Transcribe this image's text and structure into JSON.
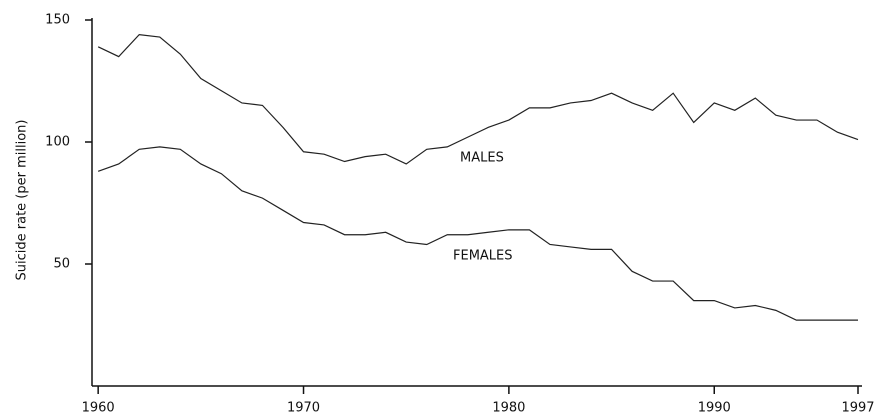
{
  "chart_data": {
    "type": "line",
    "y_label": "Suicide rate (per million)",
    "x": [
      1960,
      1961,
      1962,
      1963,
      1964,
      1965,
      1966,
      1967,
      1968,
      1969,
      1970,
      1971,
      1972,
      1973,
      1974,
      1975,
      1976,
      1977,
      1978,
      1979,
      1980,
      1981,
      1982,
      1983,
      1984,
      1985,
      1986,
      1987,
      1988,
      1989,
      1990,
      1991,
      1992,
      1993,
      1994,
      1995,
      1996,
      1997
    ],
    "series": [
      {
        "name": "MALES",
        "color": "#222222",
        "values": [
          139,
          135,
          144,
          143,
          136,
          126,
          121,
          116,
          115,
          106,
          96,
          95,
          92,
          94,
          95,
          91,
          97,
          98,
          102,
          106,
          109,
          114,
          114,
          116,
          117,
          120,
          116,
          113,
          120,
          108,
          116,
          113,
          118,
          111,
          109,
          109,
          104,
          101
        ]
      },
      {
        "name": "FEMALES",
        "color": "#222222",
        "values": [
          88,
          91,
          97,
          98,
          97,
          91,
          87,
          80,
          77,
          72,
          67,
          66,
          62,
          62,
          63,
          59,
          58,
          62,
          62,
          63,
          64,
          64,
          58,
          57,
          56,
          56,
          47,
          43,
          43,
          35,
          35,
          32,
          33,
          31,
          27,
          27,
          27,
          27
        ]
      }
    ],
    "xlim": [
      1959.7,
      1997
    ],
    "xticks": [
      1960,
      1970,
      1980,
      1990,
      1997
    ],
    "ylim": [
      0,
      150
    ],
    "yticks": [
      50,
      100,
      150
    ],
    "grid": false
  }
}
